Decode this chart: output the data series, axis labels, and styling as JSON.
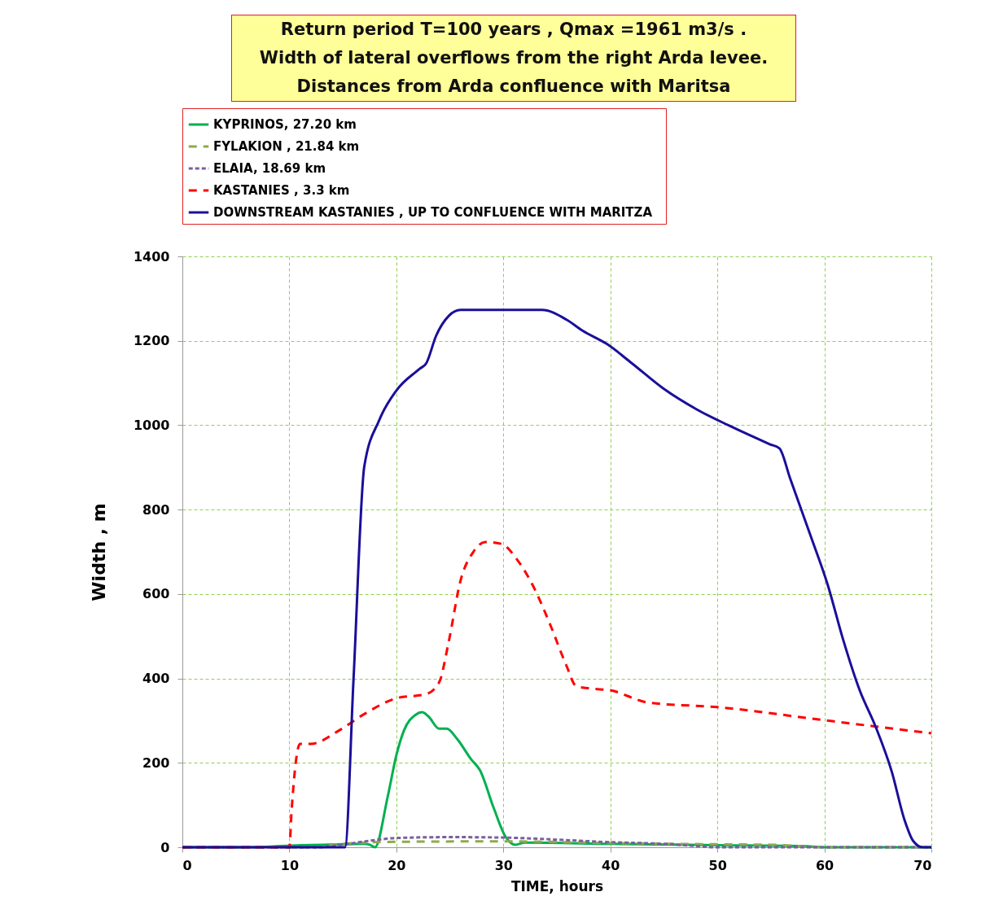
{
  "chart_data": {
    "type": "line",
    "title": "Return period  T=100 years  , Qmax =1961 m3/s .\nWidth  of  lateral  overflows from the  right   Arda levee.\nDistances from  Arda confluence with Maritsa",
    "xlabel": "TIME, hours",
    "ylabel": "Width , m",
    "xlim": [
      0,
      70
    ],
    "xticks": [
      0,
      10,
      20,
      30,
      40,
      50,
      60,
      70
    ],
    "ylim": [
      0,
      1400
    ],
    "yticks": [
      0,
      200,
      400,
      600,
      800,
      1000,
      1200,
      1400
    ],
    "grid": true,
    "legend": "top",
    "marker": "none",
    "series": [
      {
        "name": "KYPRINOS,  27.20 km",
        "color": "#00b050",
        "line_style": "solid",
        "x": [
          0,
          7,
          10,
          15,
          17,
          17.5,
          18,
          19.2,
          20,
          20.7,
          21.8,
          22.4,
          23,
          24,
          24.7,
          25.7,
          27,
          27.8,
          29.1,
          30.2,
          31.1,
          32,
          40,
          50,
          58,
          60,
          70
        ],
        "values": [
          0,
          0,
          4,
          7,
          8,
          6,
          0,
          121,
          218,
          276,
          314,
          320,
          310,
          281,
          281,
          256,
          208,
          183,
          93,
          25,
          6,
          11,
          8,
          5,
          3,
          0,
          0
        ]
      },
      {
        "name": "FYLAKION , 21.84 km",
        "color": "#8faa4a",
        "line_style": "dashed",
        "x": [
          0,
          12,
          15,
          20,
          30,
          40,
          50,
          55,
          60,
          70
        ],
        "values": [
          0,
          0,
          8,
          13,
          14,
          10,
          7,
          6,
          0,
          0
        ]
      },
      {
        "name": "ELAIA, 18.69 km",
        "color": "#7a5fa0",
        "line_style": "dotted",
        "x": [
          0,
          13,
          14.6,
          18,
          20,
          25,
          30,
          35,
          40,
          45,
          48,
          50,
          70
        ],
        "values": [
          0,
          0,
          5,
          17,
          22,
          24,
          23,
          18,
          12,
          8,
          3,
          0,
          0
        ]
      },
      {
        "name": "KASTANIES , 3.3 km",
        "color": "#ff0000",
        "line_style": "dashed",
        "x": [
          0,
          10,
          10.2,
          11,
          12,
          14.6,
          16.9,
          20,
          22.8,
          24,
          24.9,
          26,
          27.2,
          28.3,
          29.8,
          31.3,
          32.9,
          34.4,
          35.9,
          36.8,
          38.2,
          40,
          43.5,
          50,
          60,
          70
        ],
        "values": [
          0,
          0,
          83,
          245,
          245,
          276,
          314,
          353,
          363,
          391,
          488,
          632,
          700,
          723,
          719,
          681,
          613,
          526,
          430,
          382,
          376,
          372,
          343,
          332,
          301,
          270
        ]
      },
      {
        "name": "DOWNSTREAM  KASTANIES  , UP TO CONFLUENCE WITH MARITZA",
        "color": "#1a0f9a",
        "line_style": "solid",
        "x": [
          0,
          14.5,
          15.2,
          16,
          17,
          18.4,
          20,
          22.2,
          22.8,
          23.7,
          24.9,
          26,
          33.6,
          35.9,
          37.4,
          39.7,
          42,
          45,
          48.1,
          51.1,
          54.9,
          55.8,
          56.8,
          58.7,
          60.3,
          61.8,
          63.3,
          64.8,
          66.3,
          67.5,
          68.3,
          69.2,
          70
        ],
        "values": [
          0,
          0,
          0,
          400,
          902,
          1012,
          1082,
          1134,
          1147,
          1211,
          1259,
          1273,
          1273,
          1250,
          1224,
          1192,
          1147,
          1086,
          1037,
          999,
          955,
          945,
          874,
          739,
          623,
          488,
          372,
          285,
          179,
          64,
          15,
          0,
          0
        ]
      }
    ]
  }
}
